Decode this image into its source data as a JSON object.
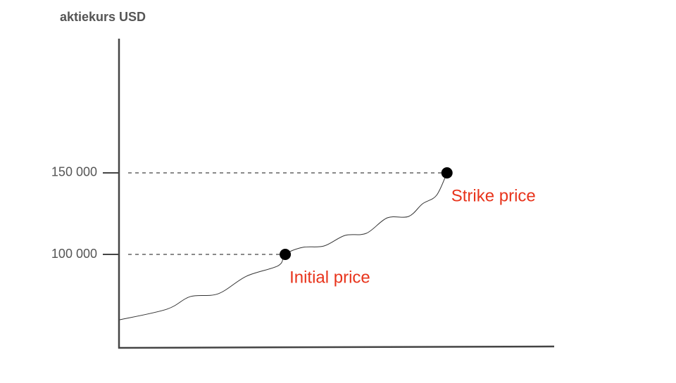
{
  "chart_data": {
    "type": "line",
    "y_axis_title": "aktiekurs USD",
    "x": [
      0.3,
      11.1,
      16.5,
      22.9,
      29.4,
      36.7,
      38.3,
      42.3,
      47.2,
      52.0,
      56.9,
      61.7,
      66.6,
      69.8,
      73.0,
      75.4
    ],
    "values": [
      59914,
      66380,
      74138,
      75862,
      86638,
      93103,
      100000,
      104310,
      105172,
      111638,
      112931,
      122414,
      123276,
      131034,
      136207,
      150000
    ],
    "color": "#333333",
    "xlim": [
      0,
      100
    ],
    "ylim": [
      42700,
      232300
    ],
    "yticks": [
      {
        "value": 100000,
        "label": "100 000"
      },
      {
        "value": 150000,
        "label": "150 000"
      }
    ],
    "markers": [
      {
        "label": "Initial price",
        "x": 38.3,
        "y": 100000,
        "color": "#e8341c"
      },
      {
        "label": "Strike price",
        "x": 75.4,
        "y": 150000,
        "color": "#e8341c"
      }
    ]
  }
}
